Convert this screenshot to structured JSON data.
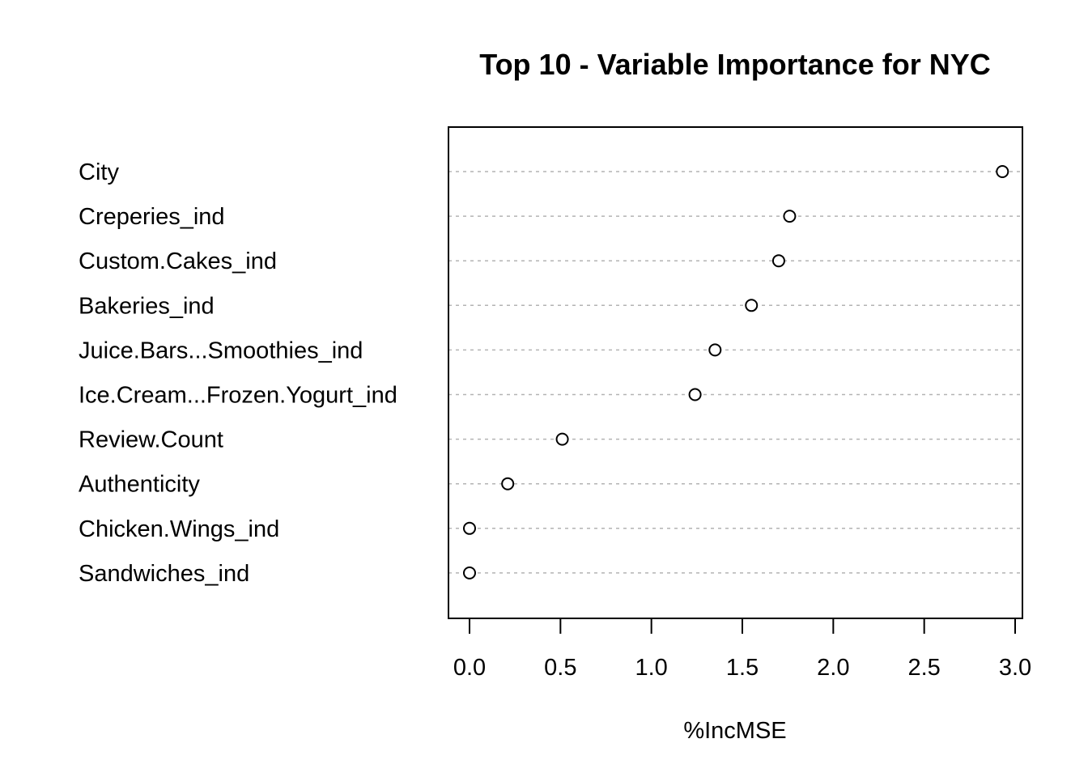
{
  "chart_data": {
    "type": "scatter",
    "subtype": "dotchart",
    "title": "Top 10 - Variable Importance for NYC",
    "xlabel": "%IncMSE",
    "ylabel": "",
    "xlim": [
      0.0,
      3.0
    ],
    "xticks": [
      "0.0",
      "0.5",
      "1.0",
      "1.5",
      "2.0",
      "2.5",
      "3.0"
    ],
    "grid": "dotted horizontal guide lines per category",
    "categories": [
      "City",
      "Creperies_ind",
      "Custom.Cakes_ind",
      "Bakeries_ind",
      "Juice.Bars...Smoothies_ind",
      "Ice.Cream...Frozen.Yogurt_ind",
      "Review.Count",
      "Authenticity",
      "Chicken.Wings_ind",
      "Sandwiches_ind"
    ],
    "values": [
      2.93,
      1.76,
      1.7,
      1.55,
      1.35,
      1.24,
      0.51,
      0.21,
      0.0,
      0.0
    ]
  }
}
